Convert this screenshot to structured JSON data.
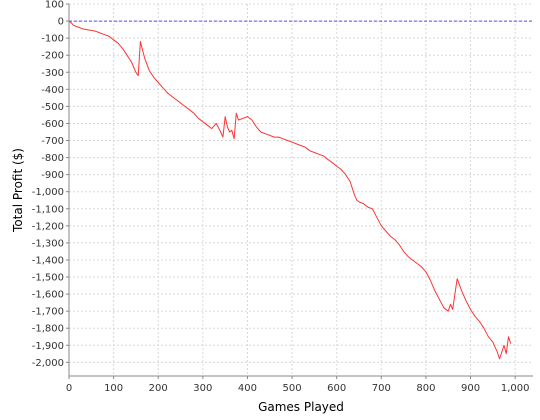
{
  "chart_data": {
    "type": "line",
    "title": "",
    "xlabel": "Games Played",
    "ylabel": "Total Profit ($)",
    "xlim": [
      0,
      1040
    ],
    "ylim": [
      -2080,
      100
    ],
    "x_ticks": [
      0,
      100,
      200,
      300,
      400,
      500,
      600,
      700,
      800,
      900,
      1000
    ],
    "x_tick_labels": [
      "0",
      "100",
      "200",
      "300",
      "400",
      "500",
      "600",
      "700",
      "800",
      "900",
      "1,000"
    ],
    "y_ticks": [
      100,
      0,
      -100,
      -200,
      -300,
      -400,
      -500,
      -600,
      -700,
      -800,
      -900,
      -1000,
      -1100,
      -1200,
      -1300,
      -1400,
      -1500,
      -1600,
      -1700,
      -1800,
      -1900,
      -2000
    ],
    "y_tick_labels": [
      "100",
      "0",
      "-100",
      "-200",
      "-300",
      "-400",
      "-500",
      "-600",
      "-700",
      "-800",
      "-900",
      "-1,000",
      "-1,100",
      "-1,200",
      "-1,300",
      "-1,400",
      "-1,500",
      "-1,600",
      "-1,700",
      "-1,800",
      "-1,900",
      "-2,000"
    ],
    "grid": true,
    "reference_line": {
      "y": 0,
      "color": "#4c4cff",
      "style": "dashed"
    },
    "series": [
      {
        "color": "#ff3333",
        "x": [
          0,
          5,
          10,
          20,
          30,
          40,
          50,
          60,
          70,
          80,
          90,
          100,
          110,
          120,
          130,
          140,
          150,
          155,
          160,
          163,
          170,
          180,
          190,
          200,
          210,
          220,
          230,
          240,
          250,
          260,
          270,
          280,
          290,
          300,
          310,
          320,
          330,
          340,
          345,
          350,
          355,
          360,
          365,
          370,
          375,
          380,
          390,
          400,
          410,
          420,
          430,
          440,
          450,
          460,
          470,
          480,
          490,
          500,
          510,
          520,
          530,
          540,
          550,
          560,
          570,
          580,
          590,
          600,
          610,
          620,
          630,
          640,
          645,
          650,
          660,
          670,
          680,
          690,
          700,
          710,
          720,
          730,
          740,
          750,
          760,
          770,
          780,
          790,
          800,
          810,
          820,
          830,
          840,
          850,
          855,
          860,
          865,
          870,
          880,
          890,
          900,
          910,
          920,
          930,
          940,
          950,
          960,
          965,
          970,
          975,
          980,
          985,
          990
        ],
        "y": [
          0,
          -10,
          -25,
          -35,
          -45,
          -50,
          -55,
          -60,
          -70,
          -80,
          -90,
          -110,
          -130,
          -160,
          -200,
          -240,
          -300,
          -320,
          -120,
          -150,
          -220,
          -290,
          -330,
          -360,
          -390,
          -420,
          -440,
          -460,
          -480,
          -500,
          -520,
          -540,
          -570,
          -590,
          -610,
          -630,
          -600,
          -650,
          -680,
          -560,
          -620,
          -650,
          -640,
          -690,
          -540,
          -580,
          -570,
          -560,
          -580,
          -620,
          -650,
          -660,
          -670,
          -680,
          -680,
          -690,
          -700,
          -710,
          -720,
          -730,
          -740,
          -760,
          -770,
          -780,
          -790,
          -810,
          -830,
          -850,
          -870,
          -900,
          -940,
          -1020,
          -1050,
          -1060,
          -1070,
          -1090,
          -1100,
          -1150,
          -1200,
          -1230,
          -1260,
          -1280,
          -1310,
          -1350,
          -1380,
          -1400,
          -1420,
          -1440,
          -1470,
          -1520,
          -1580,
          -1630,
          -1680,
          -1700,
          -1660,
          -1690,
          -1600,
          -1510,
          -1580,
          -1640,
          -1690,
          -1730,
          -1760,
          -1800,
          -1850,
          -1880,
          -1940,
          -1980,
          -1940,
          -1900,
          -1950,
          -1850,
          -1890
        ]
      }
    ]
  }
}
